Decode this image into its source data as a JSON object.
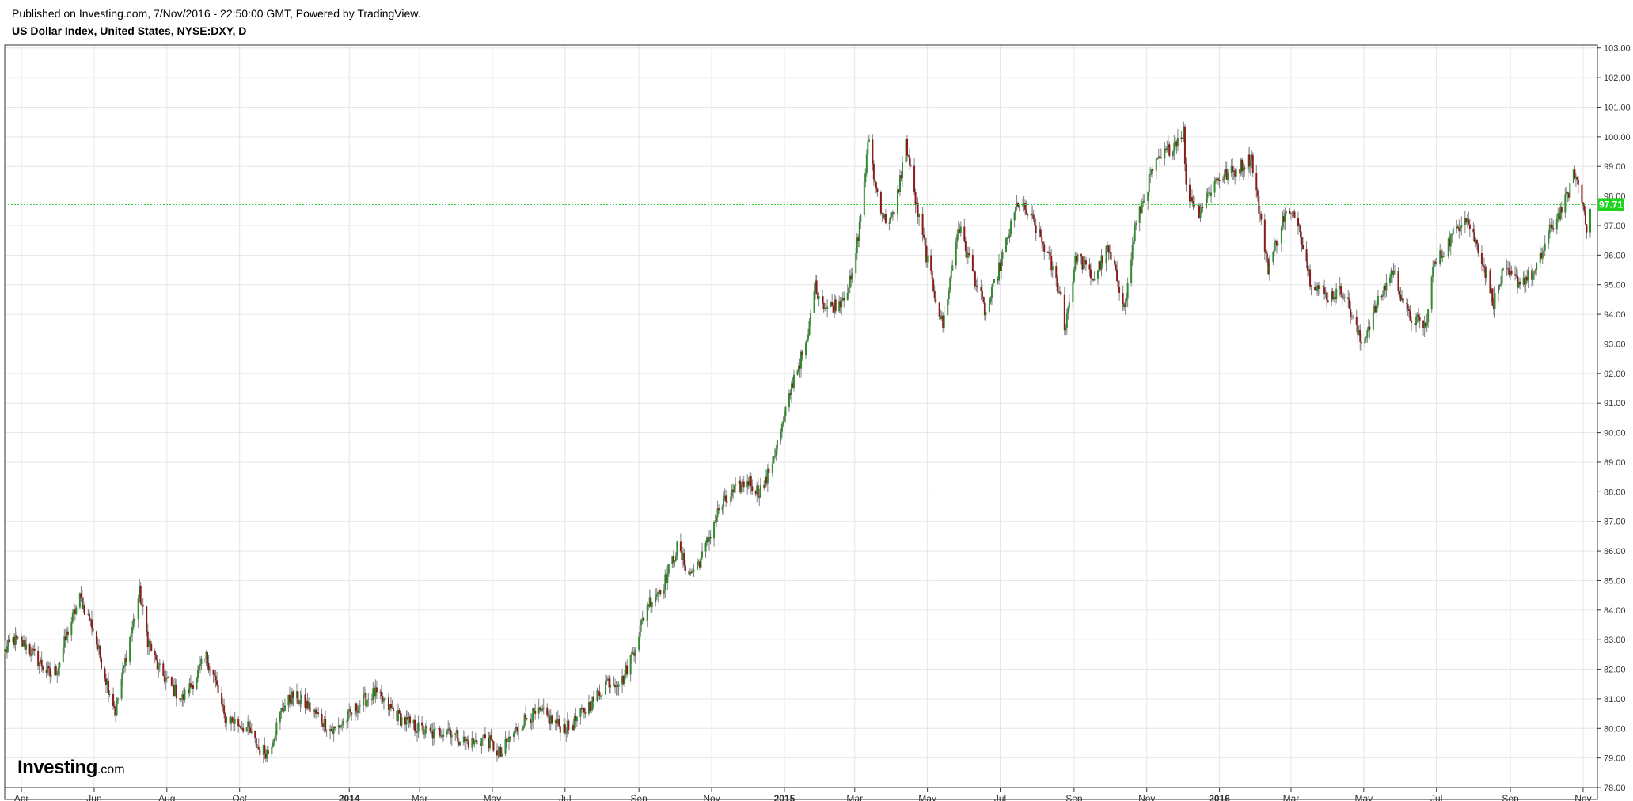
{
  "header": {
    "published": "Published on Investing.com, 7/Nov/2016 - 22:50:00 GMT, Powered by TradingView.",
    "symbol": "US Dollar Index, United States, NYSE:DXY, D"
  },
  "logo": {
    "brand": "Investing",
    "suffix": ".com"
  },
  "chart_data": {
    "type": "line",
    "render_style": "candlestick",
    "x_axis": {
      "ticks": [
        {
          "label": "Apr",
          "date": "2013-04-01",
          "bold": false
        },
        {
          "label": "Jun",
          "date": "2013-06-01",
          "bold": false
        },
        {
          "label": "Aug",
          "date": "2013-08-01",
          "bold": false
        },
        {
          "label": "Oct",
          "date": "2013-10-01",
          "bold": false
        },
        {
          "label": "2014",
          "date": "2014-01-01",
          "bold": true
        },
        {
          "label": "Mar",
          "date": "2014-03-01",
          "bold": false
        },
        {
          "label": "May",
          "date": "2014-05-01",
          "bold": false
        },
        {
          "label": "Jul",
          "date": "2014-07-01",
          "bold": false
        },
        {
          "label": "Sep",
          "date": "2014-09-01",
          "bold": false
        },
        {
          "label": "Nov",
          "date": "2014-11-01",
          "bold": false
        },
        {
          "label": "2015",
          "date": "2015-01-01",
          "bold": true
        },
        {
          "label": "Mar",
          "date": "2015-03-01",
          "bold": false
        },
        {
          "label": "May",
          "date": "2015-05-01",
          "bold": false
        },
        {
          "label": "Jul",
          "date": "2015-07-01",
          "bold": false
        },
        {
          "label": "Sep",
          "date": "2015-09-01",
          "bold": false
        },
        {
          "label": "Nov",
          "date": "2015-11-01",
          "bold": false
        },
        {
          "label": "2016",
          "date": "2016-01-01",
          "bold": true
        },
        {
          "label": "Mar",
          "date": "2016-03-01",
          "bold": false
        },
        {
          "label": "May",
          "date": "2016-05-01",
          "bold": false
        },
        {
          "label": "Jul",
          "date": "2016-07-01",
          "bold": false
        },
        {
          "label": "Sep",
          "date": "2016-09-01",
          "bold": false
        },
        {
          "label": "Nov",
          "date": "2016-11-01",
          "bold": false
        }
      ]
    },
    "y_axis": {
      "ylim": [
        77.6,
        103.1
      ],
      "ticks": [
        "78.00",
        "79.00",
        "80.00",
        "81.00",
        "82.00",
        "83.00",
        "84.00",
        "85.00",
        "86.00",
        "87.00",
        "88.00",
        "89.00",
        "90.00",
        "91.00",
        "92.00",
        "93.00",
        "94.00",
        "95.00",
        "96.00",
        "97.00",
        "98.00",
        "99.00",
        "100.00",
        "101.00",
        "102.00",
        "103.00"
      ]
    },
    "grid": true,
    "last_price": {
      "label": "97.71",
      "value": 97.71
    },
    "colors": {
      "up": "#2e8b2e",
      "down": "#8b1a1a",
      "wick": "#808080",
      "grid": "#e6e6e6",
      "price_line": "#33cc33",
      "price_tag": "#1fd41f"
    },
    "series": [
      {
        "values": [
          [
            "2013-03-18",
            82.6
          ],
          [
            "2013-03-25",
            83.0
          ],
          [
            "2013-04-05",
            82.8
          ],
          [
            "2013-04-15",
            82.3
          ],
          [
            "2013-04-25",
            81.8
          ],
          [
            "2013-05-01",
            82.0
          ],
          [
            "2013-05-10",
            83.3
          ],
          [
            "2013-05-20",
            84.4
          ],
          [
            "2013-05-30",
            83.5
          ],
          [
            "2013-06-10",
            81.8
          ],
          [
            "2013-06-19",
            80.6
          ],
          [
            "2013-06-28",
            82.5
          ],
          [
            "2013-07-05",
            83.8
          ],
          [
            "2013-07-09",
            84.6
          ],
          [
            "2013-07-16",
            83.0
          ],
          [
            "2013-07-25",
            82.0
          ],
          [
            "2013-08-05",
            81.4
          ],
          [
            "2013-08-14",
            81.0
          ],
          [
            "2013-08-22",
            81.5
          ],
          [
            "2013-09-03",
            82.4
          ],
          [
            "2013-09-10",
            81.7
          ],
          [
            "2013-09-18",
            80.4
          ],
          [
            "2013-09-28",
            80.2
          ],
          [
            "2013-10-08",
            80.0
          ],
          [
            "2013-10-17",
            79.3
          ],
          [
            "2013-10-25",
            79.2
          ],
          [
            "2013-11-06",
            80.7
          ],
          [
            "2013-11-15",
            81.1
          ],
          [
            "2013-11-26",
            80.8
          ],
          [
            "2013-12-06",
            80.4
          ],
          [
            "2013-12-18",
            79.9
          ],
          [
            "2013-12-27",
            80.2
          ],
          [
            "2014-01-09",
            80.8
          ],
          [
            "2014-01-22",
            81.2
          ],
          [
            "2014-02-01",
            80.8
          ],
          [
            "2014-02-14",
            80.3
          ],
          [
            "2014-02-28",
            80.0
          ],
          [
            "2014-03-12",
            79.8
          ],
          [
            "2014-03-25",
            80.0
          ],
          [
            "2014-04-05",
            79.6
          ],
          [
            "2014-04-15",
            79.5
          ],
          [
            "2014-04-25",
            79.7
          ],
          [
            "2014-05-08",
            79.1
          ],
          [
            "2014-05-16",
            79.7
          ],
          [
            "2014-05-30",
            80.4
          ],
          [
            "2014-06-12",
            80.5
          ],
          [
            "2014-06-26",
            80.1
          ],
          [
            "2014-07-04",
            80.0
          ],
          [
            "2014-07-15",
            80.5
          ],
          [
            "2014-07-28",
            81.1
          ],
          [
            "2014-08-05",
            81.6
          ],
          [
            "2014-08-18",
            81.6
          ],
          [
            "2014-08-28",
            82.7
          ],
          [
            "2014-09-08",
            84.2
          ],
          [
            "2014-09-22",
            84.9
          ],
          [
            "2014-10-03",
            86.1
          ],
          [
            "2014-10-14",
            85.2
          ],
          [
            "2014-10-24",
            85.8
          ],
          [
            "2014-11-07",
            87.4
          ],
          [
            "2014-11-20",
            88.0
          ],
          [
            "2014-12-02",
            88.4
          ],
          [
            "2014-12-10",
            88.0
          ],
          [
            "2014-12-16",
            88.3
          ],
          [
            "2014-12-31",
            90.3
          ],
          [
            "2015-01-09",
            91.9
          ],
          [
            "2015-01-20",
            93.0
          ],
          [
            "2015-01-26",
            95.0
          ],
          [
            "2015-02-05",
            94.2
          ],
          [
            "2015-02-16",
            94.4
          ],
          [
            "2015-02-27",
            95.2
          ],
          [
            "2015-03-05",
            97.0
          ],
          [
            "2015-03-13",
            100.0
          ],
          [
            "2015-03-18",
            98.4
          ],
          [
            "2015-03-26",
            97.2
          ],
          [
            "2015-04-03",
            97.3
          ],
          [
            "2015-04-13",
            99.8
          ],
          [
            "2015-04-22",
            97.6
          ],
          [
            "2015-05-04",
            95.2
          ],
          [
            "2015-05-14",
            93.6
          ],
          [
            "2015-05-27",
            97.0
          ],
          [
            "2015-06-10",
            95.2
          ],
          [
            "2015-06-19",
            94.0
          ],
          [
            "2015-07-02",
            95.8
          ],
          [
            "2015-07-16",
            97.8
          ],
          [
            "2015-07-29",
            97.1
          ],
          [
            "2015-08-10",
            96.0
          ],
          [
            "2015-08-21",
            94.6
          ],
          [
            "2015-08-24",
            93.5
          ],
          [
            "2015-09-03",
            96.0
          ],
          [
            "2015-09-17",
            95.2
          ],
          [
            "2015-09-29",
            96.2
          ],
          [
            "2015-10-14",
            94.3
          ],
          [
            "2015-10-22",
            96.9
          ],
          [
            "2015-11-06",
            98.9
          ],
          [
            "2015-11-20",
            99.6
          ],
          [
            "2015-12-02",
            100.2
          ],
          [
            "2015-12-04",
            98.2
          ],
          [
            "2015-12-15",
            97.5
          ],
          [
            "2015-12-30",
            98.6
          ],
          [
            "2016-01-12",
            98.8
          ],
          [
            "2016-01-28",
            99.3
          ],
          [
            "2016-02-05",
            97.0
          ],
          [
            "2016-02-11",
            95.6
          ],
          [
            "2016-02-25",
            97.4
          ],
          [
            "2016-03-07",
            97.2
          ],
          [
            "2016-03-17",
            95.2
          ],
          [
            "2016-03-31",
            94.6
          ],
          [
            "2016-04-14",
            94.8
          ],
          [
            "2016-04-29",
            93.0
          ],
          [
            "2016-05-10",
            94.1
          ],
          [
            "2016-05-25",
            95.5
          ],
          [
            "2016-06-08",
            93.9
          ],
          [
            "2016-06-23",
            93.6
          ],
          [
            "2016-06-27",
            95.5
          ],
          [
            "2016-07-08",
            96.2
          ],
          [
            "2016-07-25",
            97.4
          ],
          [
            "2016-08-08",
            95.9
          ],
          [
            "2016-08-18",
            94.4
          ],
          [
            "2016-08-26",
            95.4
          ],
          [
            "2016-09-08",
            95.1
          ],
          [
            "2016-09-22",
            95.4
          ],
          [
            "2016-10-04",
            96.8
          ],
          [
            "2016-10-18",
            97.9
          ],
          [
            "2016-10-25",
            98.8
          ],
          [
            "2016-11-01",
            97.7
          ],
          [
            "2016-11-04",
            97.0
          ],
          [
            "2016-11-07",
            97.71
          ]
        ]
      }
    ]
  }
}
